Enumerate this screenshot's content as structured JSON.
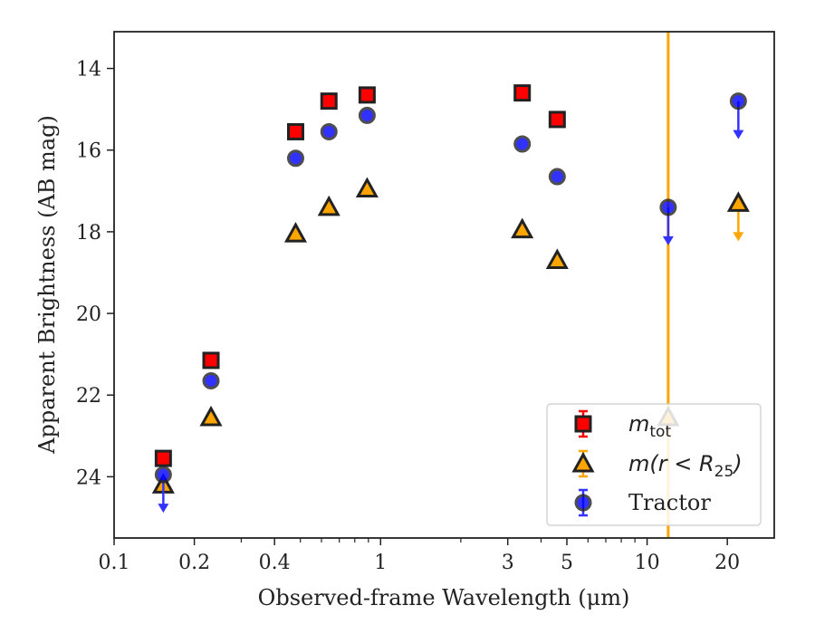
{
  "chart_data": {
    "type": "scatter",
    "title": "",
    "xlabel": "Observed-frame Wavelength (μm)",
    "ylabel": "Apparent Brightness (AB mag)",
    "xscale": "log",
    "xlim": [
      0.1,
      30
    ],
    "ylim": [
      25.5,
      13.1
    ],
    "y_inverted": true,
    "xticks": [
      {
        "value": 0.1,
        "label": "0.1"
      },
      {
        "value": 0.2,
        "label": "0.2"
      },
      {
        "value": 0.4,
        "label": "0.4"
      },
      {
        "value": 1,
        "label": "1"
      },
      {
        "value": 3,
        "label": "3"
      },
      {
        "value": 5,
        "label": "5"
      },
      {
        "value": 10,
        "label": "10"
      },
      {
        "value": 20,
        "label": "20"
      }
    ],
    "yticks": [
      {
        "value": 14,
        "label": "14"
      },
      {
        "value": 16,
        "label": "16"
      },
      {
        "value": 18,
        "label": "18"
      },
      {
        "value": 20,
        "label": "20"
      },
      {
        "value": 22,
        "label": "22"
      },
      {
        "value": 24,
        "label": "24"
      }
    ],
    "vertical_line": {
      "x": 12.0,
      "color": "#ffa500"
    },
    "legend_position": "lower-right",
    "series": [
      {
        "key": "mtot",
        "name_base": "m",
        "name_sub": "tot",
        "marker": "square",
        "color": "#ff0000",
        "points": [
          {
            "x": 0.153,
            "y": 23.55
          },
          {
            "x": 0.231,
            "y": 21.15
          },
          {
            "x": 0.48,
            "y": 15.55
          },
          {
            "x": 0.64,
            "y": 14.8
          },
          {
            "x": 0.89,
            "y": 14.65
          },
          {
            "x": 3.4,
            "y": 14.6
          },
          {
            "x": 4.6,
            "y": 15.25
          }
        ]
      },
      {
        "key": "mR25",
        "name_base": "m(r < R",
        "name_sub": "25",
        "name_suffix": ")",
        "marker": "triangle",
        "color": "#ffa500",
        "points": [
          {
            "x": 0.153,
            "y": 24.2
          },
          {
            "x": 0.231,
            "y": 22.55
          },
          {
            "x": 0.48,
            "y": 18.05
          },
          {
            "x": 0.64,
            "y": 17.4
          },
          {
            "x": 0.89,
            "y": 16.95
          },
          {
            "x": 3.4,
            "y": 17.95
          },
          {
            "x": 4.6,
            "y": 18.7
          },
          {
            "x": 12.0,
            "y": 22.55
          },
          {
            "x": 22.0,
            "y": 17.3,
            "upper_limit": true
          }
        ]
      },
      {
        "key": "tractor",
        "name": "Tractor",
        "marker": "circle",
        "color": "#0000ff",
        "points": [
          {
            "x": 0.153,
            "y": 23.95,
            "upper_limit": true
          },
          {
            "x": 0.231,
            "y": 21.65
          },
          {
            "x": 0.48,
            "y": 16.2
          },
          {
            "x": 0.64,
            "y": 15.55
          },
          {
            "x": 0.89,
            "y": 15.15
          },
          {
            "x": 3.4,
            "y": 15.85
          },
          {
            "x": 4.6,
            "y": 16.65
          },
          {
            "x": 12.0,
            "y": 17.4,
            "upper_limit": true
          },
          {
            "x": 22.0,
            "y": 14.8,
            "upper_limit": true
          }
        ]
      }
    ]
  }
}
